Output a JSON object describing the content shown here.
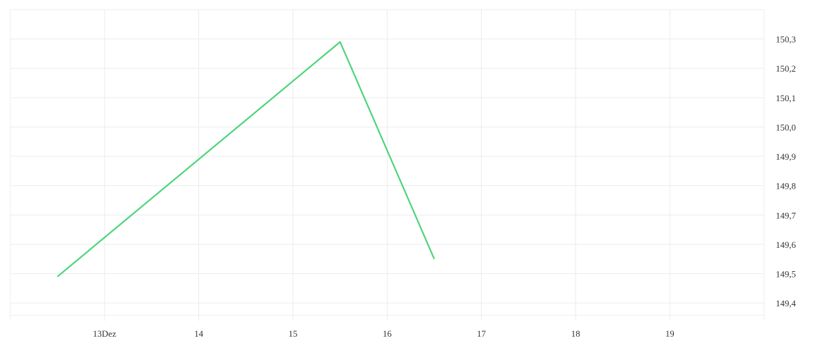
{
  "chart_data": {
    "type": "line",
    "title": "",
    "xlabel": "",
    "ylabel": "",
    "x_ticks": [
      {
        "day": 13,
        "label": "13Dez"
      },
      {
        "day": 14,
        "label": "14"
      },
      {
        "day": 15,
        "label": "15"
      },
      {
        "day": 16,
        "label": "16"
      },
      {
        "day": 17,
        "label": "17"
      },
      {
        "day": 18,
        "label": "18"
      },
      {
        "day": 19,
        "label": "19"
      }
    ],
    "y_ticks": [
      "149,4",
      "149,5",
      "149,6",
      "149,7",
      "149,8",
      "149,9",
      "150,0",
      "150,1",
      "150,2",
      "150,3"
    ],
    "y_tick_values": [
      149.4,
      149.5,
      149.6,
      149.7,
      149.8,
      149.9,
      150.0,
      150.1,
      150.2,
      150.3
    ],
    "xlim_days": [
      12,
      20
    ],
    "ylim": [
      149.358,
      150.4
    ],
    "y_axis_position": "right",
    "grid": true,
    "series": [
      {
        "color": "#4cd47a",
        "points": [
          {
            "x": "12.12. 12:00",
            "day": 12.5,
            "y": 149.49
          },
          {
            "x": "15.12. 12:00",
            "day": 15.5,
            "y": 150.29
          },
          {
            "x": "16.12. 12:00",
            "day": 16.5,
            "y": 149.55
          }
        ]
      }
    ]
  }
}
